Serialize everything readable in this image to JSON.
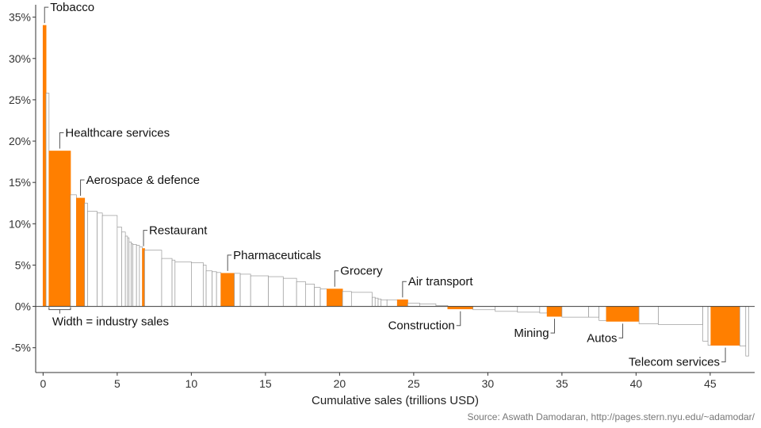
{
  "chart_data": {
    "type": "bar",
    "subtype": "variable-width (marimekko)",
    "xlabel": "Cumulative sales (trillions USD)",
    "ylabel": "",
    "xlim": [
      -0.5,
      48
    ],
    "ylim": [
      -0.08,
      0.365
    ],
    "x_ticks": [
      0,
      5,
      10,
      15,
      20,
      25,
      30,
      35,
      40,
      45
    ],
    "y_ticks": [
      -0.05,
      0,
      0.05,
      0.1,
      0.15,
      0.2,
      0.25,
      0.3,
      0.35
    ],
    "y_tick_labels": [
      "-5%",
      "0%",
      "5%",
      "10%",
      "15%",
      "20%",
      "25%",
      "30%",
      "35%"
    ],
    "highlight_color": "#ff7f00",
    "base_color": "#ffffff",
    "outline_color": "#999999",
    "source": "Source: Aswath Damodaran, http://pages.stern.nyu.edu/~adamodar/",
    "width_note": "Width = industry sales",
    "bars": [
      {
        "x0": 0.0,
        "x1": 0.2,
        "value": 0.34,
        "label": "Tobacco"
      },
      {
        "x0": 0.2,
        "x1": 0.4,
        "value": 0.258
      },
      {
        "x0": 0.4,
        "x1": 1.85,
        "value": 0.188,
        "label": "Healthcare services"
      },
      {
        "x0": 1.85,
        "x1": 2.25,
        "value": 0.135
      },
      {
        "x0": 2.25,
        "x1": 2.8,
        "value": 0.131,
        "label": "Aerospace & defence"
      },
      {
        "x0": 2.8,
        "x1": 3.0,
        "value": 0.125
      },
      {
        "x0": 3.0,
        "x1": 3.65,
        "value": 0.115
      },
      {
        "x0": 3.65,
        "x1": 4.0,
        "value": 0.113
      },
      {
        "x0": 4.0,
        "x1": 5.0,
        "value": 0.11
      },
      {
        "x0": 5.0,
        "x1": 5.3,
        "value": 0.096
      },
      {
        "x0": 5.3,
        "x1": 5.55,
        "value": 0.09
      },
      {
        "x0": 5.55,
        "x1": 5.7,
        "value": 0.085
      },
      {
        "x0": 5.7,
        "x1": 5.8,
        "value": 0.083
      },
      {
        "x0": 5.8,
        "x1": 5.95,
        "value": 0.078
      },
      {
        "x0": 5.95,
        "x1": 6.05,
        "value": 0.076
      },
      {
        "x0": 6.05,
        "x1": 6.3,
        "value": 0.075
      },
      {
        "x0": 6.3,
        "x1": 6.5,
        "value": 0.074
      },
      {
        "x0": 6.5,
        "x1": 6.7,
        "value": 0.072
      },
      {
        "x0": 6.7,
        "x1": 6.85,
        "value": 0.07,
        "label": "Restaurant"
      },
      {
        "x0": 6.85,
        "x1": 8.0,
        "value": 0.068
      },
      {
        "x0": 8.0,
        "x1": 8.7,
        "value": 0.058
      },
      {
        "x0": 8.7,
        "x1": 8.9,
        "value": 0.056
      },
      {
        "x0": 8.9,
        "x1": 10.0,
        "value": 0.054
      },
      {
        "x0": 10.0,
        "x1": 10.8,
        "value": 0.053
      },
      {
        "x0": 10.8,
        "x1": 11.0,
        "value": 0.05
      },
      {
        "x0": 11.0,
        "x1": 11.4,
        "value": 0.043
      },
      {
        "x0": 11.4,
        "x1": 11.7,
        "value": 0.042
      },
      {
        "x0": 11.7,
        "x1": 12.0,
        "value": 0.041
      },
      {
        "x0": 12.0,
        "x1": 12.9,
        "value": 0.04,
        "label": "Pharmaceuticals"
      },
      {
        "x0": 12.9,
        "x1": 13.3,
        "value": 0.04
      },
      {
        "x0": 13.3,
        "x1": 14.0,
        "value": 0.039
      },
      {
        "x0": 14.0,
        "x1": 15.2,
        "value": 0.037
      },
      {
        "x0": 15.2,
        "x1": 16.2,
        "value": 0.036
      },
      {
        "x0": 16.2,
        "x1": 17.1,
        "value": 0.034
      },
      {
        "x0": 17.1,
        "x1": 17.7,
        "value": 0.03
      },
      {
        "x0": 17.7,
        "x1": 18.3,
        "value": 0.027
      },
      {
        "x0": 18.3,
        "x1": 18.7,
        "value": 0.023
      },
      {
        "x0": 18.7,
        "x1": 19.15,
        "value": 0.021
      },
      {
        "x0": 19.15,
        "x1": 20.2,
        "value": 0.021,
        "label": "Grocery"
      },
      {
        "x0": 20.2,
        "x1": 20.8,
        "value": 0.018
      },
      {
        "x0": 20.8,
        "x1": 22.2,
        "value": 0.017
      },
      {
        "x0": 22.2,
        "x1": 22.4,
        "value": 0.011
      },
      {
        "x0": 22.4,
        "x1": 22.6,
        "value": 0.01
      },
      {
        "x0": 22.6,
        "x1": 22.8,
        "value": 0.009
      },
      {
        "x0": 22.8,
        "x1": 23.2,
        "value": 0.008
      },
      {
        "x0": 23.2,
        "x1": 23.9,
        "value": 0.008
      },
      {
        "x0": 23.9,
        "x1": 24.6,
        "value": 0.008,
        "label": "Air transport"
      },
      {
        "x0": 24.6,
        "x1": 25.4,
        "value": 0.004
      },
      {
        "x0": 25.4,
        "x1": 26.5,
        "value": 0.003
      },
      {
        "x0": 26.5,
        "x1": 27.3,
        "value": 0.001
      },
      {
        "x0": 27.3,
        "x1": 29.0,
        "value": -0.003,
        "label": "Construction"
      },
      {
        "x0": 29.0,
        "x1": 30.5,
        "value": -0.004
      },
      {
        "x0": 30.5,
        "x1": 32.0,
        "value": -0.006
      },
      {
        "x0": 32.0,
        "x1": 33.5,
        "value": -0.007
      },
      {
        "x0": 33.5,
        "x1": 34.0,
        "value": -0.008
      },
      {
        "x0": 34.0,
        "x1": 35.0,
        "value": -0.012,
        "label": "Mining"
      },
      {
        "x0": 35.0,
        "x1": 36.8,
        "value": -0.013
      },
      {
        "x0": 36.8,
        "x1": 37.5,
        "value": -0.013
      },
      {
        "x0": 37.5,
        "x1": 38.0,
        "value": -0.017
      },
      {
        "x0": 38.0,
        "x1": 40.2,
        "value": -0.018,
        "label": "Autos"
      },
      {
        "x0": 40.2,
        "x1": 41.5,
        "value": -0.021
      },
      {
        "x0": 41.5,
        "x1": 44.5,
        "value": -0.022
      },
      {
        "x0": 44.5,
        "x1": 44.85,
        "value": -0.042
      },
      {
        "x0": 44.85,
        "x1": 45.05,
        "value": -0.047
      },
      {
        "x0": 45.05,
        "x1": 47.0,
        "value": -0.047,
        "label": "Telecom services"
      },
      {
        "x0": 47.0,
        "x1": 47.4,
        "value": -0.048
      },
      {
        "x0": 47.4,
        "x1": 47.6,
        "value": -0.06
      }
    ],
    "annotations": [
      {
        "text": "Tobacco",
        "anchor": "start",
        "side": "above"
      },
      {
        "text": "Healthcare services",
        "anchor": "start",
        "side": "above"
      },
      {
        "text": "Aerospace & defence",
        "anchor": "start",
        "side": "above"
      },
      {
        "text": "Restaurant",
        "anchor": "start",
        "side": "above"
      },
      {
        "text": "Pharmaceuticals",
        "anchor": "start",
        "side": "above"
      },
      {
        "text": "Grocery",
        "anchor": "start",
        "side": "above"
      },
      {
        "text": "Air transport",
        "anchor": "start",
        "side": "above"
      },
      {
        "text": "Construction",
        "anchor": "end",
        "side": "below"
      },
      {
        "text": "Mining",
        "anchor": "end",
        "side": "below"
      },
      {
        "text": "Autos",
        "anchor": "end",
        "side": "below"
      },
      {
        "text": "Telecom services",
        "anchor": "end",
        "side": "below"
      }
    ]
  }
}
